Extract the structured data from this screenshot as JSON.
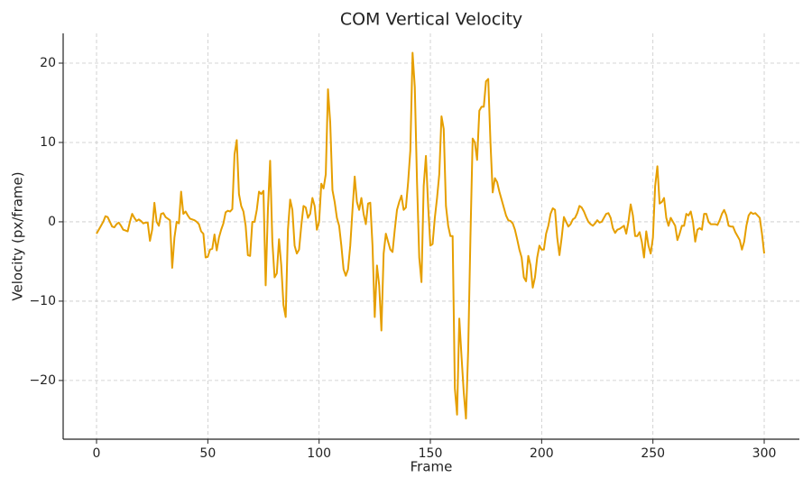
{
  "chart_data": {
    "type": "line",
    "title": "COM Vertical Velocity",
    "x_label": "Frame",
    "y_label": "Velocity (px/frame)",
    "xlim": [
      -15,
      315.8
    ],
    "ylim": [
      -27.4,
      23.75
    ],
    "xticks": [
      0,
      50,
      100,
      150,
      200,
      250,
      300
    ],
    "yticks": [
      {
        "value": -20,
        "label": "−20"
      },
      {
        "value": -10,
        "label": "−10"
      },
      0,
      10,
      20
    ],
    "grid": true,
    "x": [
      0,
      1,
      2,
      3,
      4,
      5,
      6,
      7,
      8,
      9,
      10,
      11,
      12,
      13,
      14,
      15,
      16,
      17,
      18,
      19,
      20,
      21,
      22,
      23,
      24,
      25,
      26,
      27,
      28,
      29,
      30,
      31,
      32,
      33,
      34,
      35,
      36,
      37,
      38,
      39,
      40,
      41,
      42,
      43,
      44,
      45,
      46,
      47,
      48,
      49,
      50,
      51,
      52,
      53,
      54,
      55,
      56,
      57,
      58,
      59,
      60,
      61,
      62,
      63,
      64,
      65,
      66,
      67,
      68,
      69,
      70,
      71,
      72,
      73,
      74,
      75,
      76,
      77,
      78,
      79,
      80,
      81,
      82,
      83,
      84,
      85,
      86,
      87,
      88,
      89,
      90,
      91,
      92,
      93,
      94,
      95,
      96,
      97,
      98,
      99,
      100,
      101,
      102,
      103,
      104,
      105,
      106,
      107,
      108,
      109,
      110,
      111,
      112,
      113,
      114,
      115,
      116,
      117,
      118,
      119,
      120,
      121,
      122,
      123,
      124,
      125,
      126,
      127,
      128,
      129,
      130,
      131,
      132,
      133,
      134,
      135,
      136,
      137,
      138,
      139,
      140,
      141,
      142,
      143,
      144,
      145,
      146,
      147,
      148,
      149,
      150,
      151,
      152,
      153,
      154,
      155,
      156,
      157,
      158,
      159,
      160,
      161,
      162,
      163,
      164,
      165,
      166,
      167,
      168,
      169,
      170,
      171,
      172,
      173,
      174,
      175,
      176,
      177,
      178,
      179,
      180,
      181,
      182,
      183,
      184,
      185,
      186,
      187,
      188,
      189,
      190,
      191,
      192,
      193,
      194,
      195,
      196,
      197,
      198,
      199,
      200,
      201,
      202,
      203,
      204,
      205,
      206,
      207,
      208,
      209,
      210,
      211,
      212,
      213,
      214,
      215,
      216,
      217,
      218,
      219,
      220,
      221,
      222,
      223,
      224,
      225,
      226,
      227,
      228,
      229,
      230,
      231,
      232,
      233,
      234,
      235,
      236,
      237,
      238,
      239,
      240,
      241,
      242,
      243,
      244,
      245,
      246,
      247,
      248,
      249,
      250,
      251,
      252,
      253,
      254,
      255,
      256,
      257,
      258,
      259,
      260,
      261,
      262,
      263,
      264,
      265,
      266,
      267,
      268,
      269,
      270,
      271,
      272,
      273,
      274,
      275,
      276,
      277,
      278,
      279,
      280,
      281,
      282,
      283,
      284,
      285,
      286,
      287,
      288,
      289,
      290,
      291,
      292,
      293,
      294,
      295,
      296,
      297,
      298,
      299,
      300
    ],
    "series": [
      {
        "color": "#e69f00",
        "values": [
          -1.5,
          -1,
          -0.5,
          0,
          0.7,
          0.6,
          0,
          -0.6,
          -0.7,
          -0.3,
          -0.1,
          -0.5,
          -1,
          -1.1,
          -1.2,
          0,
          1,
          0.5,
          0.1,
          0.3,
          0.1,
          -0.2,
          -0.1,
          -0.1,
          -2.4,
          -1,
          2.4,
          0,
          -0.5,
          1,
          1.1,
          0.6,
          0.4,
          0.2,
          -5.8,
          -2,
          0,
          -0.2,
          3.8,
          1,
          1.3,
          0.8,
          0.4,
          0.3,
          0.2,
          0,
          -0.3,
          -1.2,
          -1.5,
          -4.5,
          -4.4,
          -3.5,
          -3.4,
          -1.6,
          -3.6,
          -2,
          -1,
          -0.2,
          1.2,
          1.4,
          1.3,
          1.6,
          8.5,
          10.3,
          3.5,
          2,
          1.3,
          -0.5,
          -4.2,
          -4.3,
          0,
          0,
          1.5,
          3.8,
          3.5,
          3.9,
          -8,
          1.5,
          7.7,
          -2.5,
          -7,
          -6.5,
          -2.2,
          -5.5,
          -10.5,
          -12,
          -1,
          2.8,
          1.5,
          -3,
          -4,
          -3.5,
          -0.5,
          2,
          1.8,
          0.5,
          1,
          3,
          2,
          -1,
          0,
          4.8,
          4.2,
          6,
          16.7,
          12.5,
          4,
          2.5,
          0.5,
          -0.5,
          -3,
          -6,
          -6.8,
          -6,
          -3,
          1.5,
          5.7,
          2.5,
          1.5,
          3,
          1,
          -0.3,
          2.3,
          2.4,
          -3,
          -12,
          -5.5,
          -8,
          -13.7,
          -4,
          -1.5,
          -2.5,
          -3.5,
          -3.8,
          -1,
          1.5,
          2.5,
          3.3,
          1.5,
          1.8,
          5,
          9,
          21.3,
          17,
          5,
          -4.5,
          -7.6,
          4.5,
          8.3,
          2,
          -3,
          -2.8,
          0.5,
          3,
          6,
          13.3,
          11.7,
          2,
          -0.5,
          -1.8,
          -1.8,
          -21,
          -24.3,
          -12.2,
          -17,
          -21.5,
          -24.8,
          -16,
          -2,
          10.5,
          10,
          7.8,
          14,
          14.5,
          14.5,
          17.7,
          18,
          10,
          3.7,
          5.5,
          5,
          3.8,
          2.8,
          1.8,
          0.8,
          0.2,
          0.1,
          -0.2,
          -1,
          -2.2,
          -3.5,
          -4.5,
          -7,
          -7.5,
          -4.3,
          -5.5,
          -8.3,
          -7,
          -4.5,
          -3,
          -3.5,
          -3.5,
          -1.5,
          -0.5,
          1,
          1.7,
          1.5,
          -2,
          -4.2,
          -2,
          0.6,
          0,
          -0.6,
          -0.3,
          0.3,
          0.5,
          1.1,
          2,
          1.8,
          1.3,
          0.6,
          0,
          -0.3,
          -0.5,
          -0.2,
          0.2,
          -0.1,
          0,
          0.5,
          1,
          1.1,
          0.5,
          -0.8,
          -1.4,
          -1,
          -0.9,
          -0.7,
          -0.5,
          -1.5,
          0,
          2.2,
          0.8,
          -1.8,
          -1.8,
          -1.3,
          -2.5,
          -4.5,
          -1.2,
          -3,
          -4,
          -2,
          4.5,
          7,
          2.3,
          2.5,
          3,
          0.5,
          -0.5,
          0.5,
          0,
          -0.5,
          -2.3,
          -1.5,
          -0.5,
          -0.5,
          1,
          0.8,
          1.3,
          0,
          -2.5,
          -1,
          -0.8,
          -1,
          1,
          1,
          0,
          -0.3,
          -0.3,
          -0.3,
          -0.4,
          0.2,
          1,
          1.5,
          0.8,
          -0.5,
          -0.6,
          -0.6,
          -1.3,
          -1.8,
          -2.3,
          -3.5,
          -2.5,
          -0.5,
          0.8,
          1.2,
          1,
          1.1,
          0.8,
          0.5,
          -1.5,
          -4
        ]
      }
    ]
  }
}
